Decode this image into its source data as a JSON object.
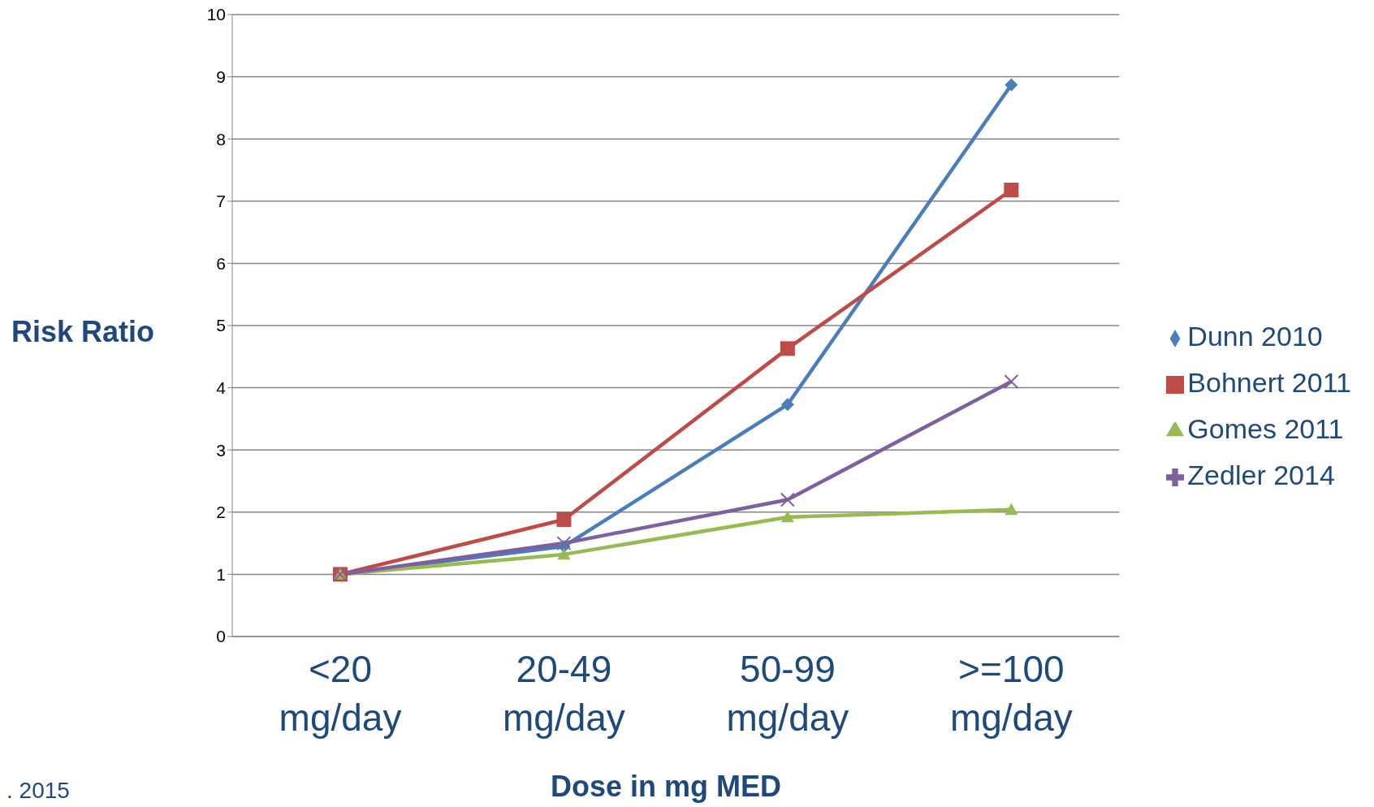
{
  "chart_data": {
    "type": "line",
    "xlabel": "Dose in mg MED",
    "ylabel": "Risk Ratio",
    "categories": [
      "<20 mg/day",
      "20-49 mg/day",
      "50-99 mg/day",
      ">=100 mg/day"
    ],
    "series": [
      {
        "name": "Dunn 2010",
        "color": "#4a7ebb",
        "marker": "diamond",
        "values": [
          1,
          1.45,
          3.73,
          8.87
        ]
      },
      {
        "name": "Bohnert 2011",
        "color": "#be4b48",
        "marker": "square",
        "values": [
          1,
          1.88,
          4.63,
          7.18
        ]
      },
      {
        "name": "Gomes 2011",
        "color": "#98b954",
        "marker": "triangle",
        "values": [
          1,
          1.32,
          1.92,
          2.04
        ]
      },
      {
        "name": "Zedler 2014",
        "color": "#7d60a0",
        "marker": "cross",
        "values": [
          1,
          1.5,
          2.2,
          4.1
        ]
      }
    ],
    "ylim": [
      0,
      10
    ],
    "yticks": [
      0,
      1,
      2,
      3,
      4,
      5,
      6,
      7,
      8,
      9,
      10
    ],
    "grid": "y",
    "legend": "right",
    "line_style": "solid",
    "annotations": [
      ". 2015"
    ]
  }
}
